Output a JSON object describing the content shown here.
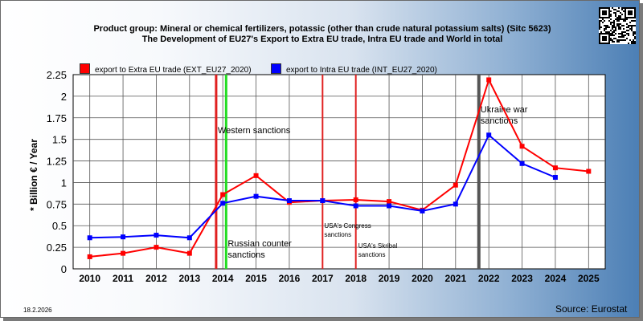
{
  "header": {
    "title_line1": "Product group: Mineral or chemical fertilizers, potassic (other than crude natural potassium salts) (Sitc 5623)",
    "title_line2": "The Development of EU27's Export to Extra EU trade, Intra EU trade and World in total"
  },
  "footer": {
    "date": "18.2.2026",
    "source": "Source: Eurostat"
  },
  "colors": {
    "extra_eu": "#ff0000",
    "intra_eu": "#0000ff",
    "sanction_red": "#e02020",
    "sanction_green": "#22dd22",
    "war_gray": "#555555"
  },
  "chart_data": {
    "type": "line",
    "ylabel": "* Billion € / Year",
    "ylim": [
      0,
      2.25
    ],
    "yticks": [
      "0",
      "0.25",
      "0.5",
      "0.75",
      "1",
      "1.25",
      "1.5",
      "1.75",
      "2",
      "2.25"
    ],
    "categories": [
      "2010",
      "2011",
      "2012",
      "2013",
      "2014",
      "2015",
      "2016",
      "2017",
      "2018",
      "2019",
      "2020",
      "2021",
      "2022",
      "2023",
      "2024",
      "2025"
    ],
    "grid": true,
    "legend_position": "top-left",
    "series": [
      {
        "name": "export to Extra EU trade (EXT_EU27_2020)",
        "color": "#ff0000",
        "x": [
          2010,
          2011,
          2012,
          2013,
          2014,
          2015,
          2016,
          2017,
          2018,
          2019,
          2020,
          2021,
          2022,
          2023,
          2024,
          2025
        ],
        "values": [
          0.14,
          0.18,
          0.25,
          0.18,
          0.86,
          1.08,
          0.77,
          0.79,
          0.8,
          0.78,
          0.68,
          0.97,
          2.19,
          1.42,
          1.17,
          1.13
        ]
      },
      {
        "name": "export to Intra EU trade (INT_EU27_2020)",
        "color": "#0000ff",
        "x": [
          2010,
          2011,
          2012,
          2013,
          2014,
          2015,
          2016,
          2017,
          2018,
          2019,
          2020,
          2021,
          2022,
          2023,
          2024
        ],
        "values": [
          0.36,
          0.37,
          0.39,
          0.36,
          0.76,
          0.84,
          0.79,
          0.79,
          0.73,
          0.73,
          0.67,
          0.75,
          1.55,
          1.22,
          1.06
        ]
      }
    ],
    "events": [
      {
        "x": 2013.8,
        "color": "#e02020",
        "label": "Western sanctions"
      },
      {
        "x": 2014.1,
        "color": "#22dd22",
        "label": "Russian counter sanctions"
      },
      {
        "x": 2017.0,
        "color": "#e02020",
        "label": "USA's Congress sanctions"
      },
      {
        "x": 2018.0,
        "color": "#e02020",
        "label": "USA's Skribal sanctions"
      },
      {
        "x": 2021.7,
        "color": "#555555",
        "label": "Ukraine war sanctions"
      }
    ]
  }
}
